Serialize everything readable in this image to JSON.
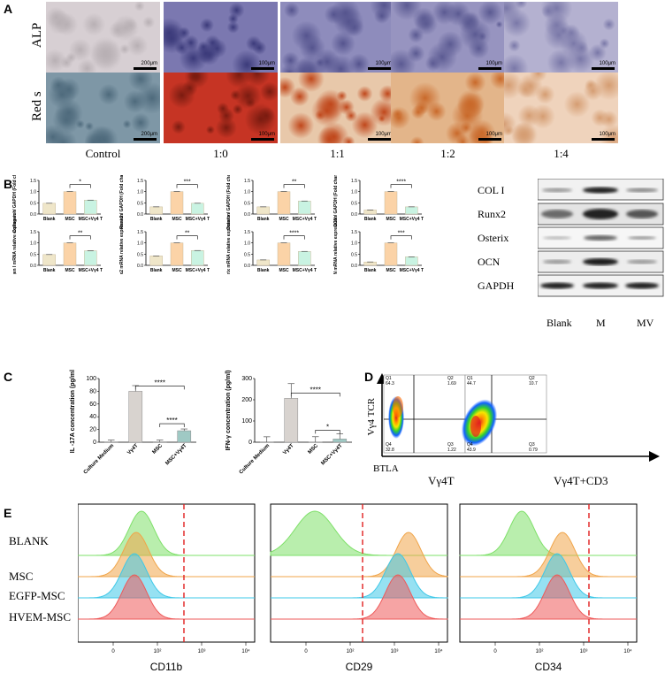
{
  "panels": {
    "A": "A",
    "B": "B",
    "C": "C",
    "D": "D",
    "E": "E"
  },
  "panelA": {
    "rows": [
      "ALP",
      "Red s"
    ],
    "columns": [
      "Control",
      "1:0",
      "1:1",
      "1:2",
      "1:4"
    ],
    "scale_labels": [
      [
        "200μm",
        "100μm",
        "100μm",
        "100μm",
        "100μm"
      ],
      [
        "200μm",
        "100μm",
        "100μm",
        "100μm",
        "100μm"
      ]
    ]
  },
  "panelB": {
    "bar_colors": [
      "#efe6c9",
      "#fbd3a7",
      "#c9f3e2"
    ],
    "western_blot": {
      "proteins": [
        "COL I",
        "Runx2",
        "Osterix",
        "OCN",
        "GAPDH"
      ],
      "lanes": [
        "Blank",
        "M",
        "MV"
      ]
    }
  },
  "panelD": {
    "ylabel": "Vγ4 TCR",
    "xlabel": "BTLA",
    "plots": [
      {
        "title": "Vγ4T",
        "Q1": "Q1",
        "Q1v": "64.3",
        "Q2": "Q2",
        "Q2v": "1.69",
        "Q3": "Q3",
        "Q3v": "1.22",
        "Q4": "Q4",
        "Q4v": "32.8"
      },
      {
        "title": "Vγ4T+CD3",
        "Q1": "Q1",
        "Q1v": "44.7",
        "Q2": "Q2",
        "Q2v": "10.7",
        "Q3": "Q3",
        "Q3v": "0.79",
        "Q4": "Q4",
        "Q4v": "43.9"
      }
    ]
  },
  "panelE": {
    "rows": [
      "BLANK",
      "MSC",
      "EGFP-MSC",
      "HVEM-MSC"
    ],
    "row_colors": [
      "#7fe06a",
      "#f0a54a",
      "#3fc8e8",
      "#ee5a5a"
    ],
    "markers": [
      "CD11b",
      "CD29",
      "CD34"
    ],
    "tick_labels": [
      "0",
      "10²",
      "10³",
      "10⁴"
    ]
  },
  "chart_data": [
    {
      "type": "bar",
      "ylabel": "Collagen I / GAPDH (Fold change)",
      "categories": [
        "Blank",
        "MSC",
        "MSC+Vγ4 T"
      ],
      "values": [
        0.48,
        1.0,
        0.62
      ],
      "ylim": [
        0,
        1.5
      ],
      "yticks": [
        "0.0",
        "0.5",
        "1.0",
        "1.5"
      ],
      "significance": [
        "*"
      ]
    },
    {
      "type": "bar",
      "ylabel": "Runx2 / GAPDH (Fold change)",
      "categories": [
        "Blank",
        "MSC",
        "MSC+Vγ4 T"
      ],
      "values": [
        0.32,
        1.0,
        0.48
      ],
      "ylim": [
        0,
        1.5
      ],
      "yticks": [
        "0.0",
        "0.5",
        "1.0",
        "1.5"
      ],
      "significance": [
        "***"
      ]
    },
    {
      "type": "bar",
      "ylabel": "Osterix / GAPDH (Fold change)",
      "categories": [
        "Blank",
        "MSC",
        "MSC+Vγ4 T"
      ],
      "values": [
        0.32,
        1.0,
        0.58
      ],
      "ylim": [
        0,
        1.5
      ],
      "yticks": [
        "0.0",
        "0.5",
        "1.0",
        "1.5"
      ],
      "significance": [
        "**"
      ]
    },
    {
      "type": "bar",
      "ylabel": "OCN / GAPDH (Fold change)",
      "categories": [
        "Blank",
        "MSC",
        "MSC+Vγ4 T"
      ],
      "values": [
        0.18,
        1.0,
        0.32
      ],
      "ylim": [
        0,
        1.5
      ],
      "yticks": [
        "0.0",
        "0.5",
        "1.0",
        "1.5"
      ],
      "significance": [
        "****"
      ]
    },
    {
      "type": "bar",
      "ylabel": "Collagen I mRNA relative expression",
      "categories": [
        "Blank",
        "MSC",
        "MSC+Vγ4 T"
      ],
      "values": [
        0.48,
        1.0,
        0.65
      ],
      "ylim": [
        0,
        1.5
      ],
      "yticks": [
        "0.0",
        "0.5",
        "1.0",
        "1.5"
      ],
      "significance": [
        "**"
      ]
    },
    {
      "type": "bar",
      "ylabel": "Runx2 mRNA relative expression",
      "categories": [
        "Blank",
        "MSC",
        "MSC+Vγ4 T"
      ],
      "values": [
        0.42,
        1.0,
        0.66
      ],
      "ylim": [
        0,
        1.5
      ],
      "yticks": [
        "0.0",
        "0.5",
        "1.0",
        "1.5"
      ],
      "significance": [
        "**"
      ]
    },
    {
      "type": "bar",
      "ylabel": "Osterix mRNA relative expression",
      "categories": [
        "Blank",
        "MSC",
        "MSC+Vγ4 T"
      ],
      "values": [
        0.24,
        1.0,
        0.62
      ],
      "ylim": [
        0,
        1.5
      ],
      "yticks": [
        "0.0",
        "0.5",
        "1.0",
        "1.5"
      ],
      "significance": [
        "****"
      ]
    },
    {
      "type": "bar",
      "ylabel": "OCN mRNA relative expression",
      "categories": [
        "Blank",
        "MSC",
        "MSC+Vγ4 T"
      ],
      "values": [
        0.15,
        1.0,
        0.38
      ],
      "ylim": [
        0,
        1.5
      ],
      "yticks": [
        "0.0",
        "0.5",
        "1.0",
        "1.5"
      ],
      "significance": [
        "***"
      ]
    },
    {
      "type": "bar",
      "ylabel": "IL -17A concentration (pg/ml)",
      "categories": [
        "Culture Medium",
        "Vγ4T",
        "MSC",
        "MSC+Vγ4T"
      ],
      "values": [
        0.5,
        80,
        0.6,
        18
      ],
      "ylim": [
        0,
        100
      ],
      "yticks": [
        "0",
        "20",
        "40",
        "60",
        "80",
        "100"
      ],
      "significance": [
        "****",
        "****"
      ]
    },
    {
      "type": "bar",
      "ylabel": "IFN-γ concentration (pg/ml)",
      "categories": [
        "Culture Medium",
        "Vγ4T",
        "MSC",
        "MSC+Vγ4T"
      ],
      "values": [
        0.5,
        207,
        0.8,
        15
      ],
      "ylim": [
        0,
        300
      ],
      "yticks": [
        "0",
        "100",
        "200",
        "300"
      ],
      "significance": [
        "****",
        "*"
      ]
    }
  ]
}
